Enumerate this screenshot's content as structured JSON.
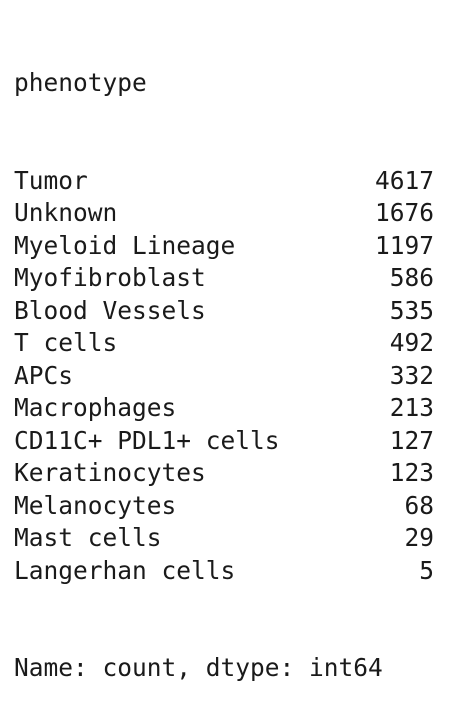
{
  "series": {
    "index_name": "phenotype",
    "rows": [
      {
        "label": "Tumor",
        "value": "4617"
      },
      {
        "label": "Unknown",
        "value": "1676"
      },
      {
        "label": "Myeloid Lineage",
        "value": "1197"
      },
      {
        "label": "Myofibroblast",
        "value": "586"
      },
      {
        "label": "Blood Vessels",
        "value": "535"
      },
      {
        "label": "T cells",
        "value": "492"
      },
      {
        "label": "APCs",
        "value": "332"
      },
      {
        "label": "Macrophages",
        "value": "213"
      },
      {
        "label": "CD11C+ PDL1+ cells",
        "value": "127"
      },
      {
        "label": "Keratinocytes",
        "value": "123"
      },
      {
        "label": "Melanocytes",
        "value": "68"
      },
      {
        "label": "Mast cells",
        "value": "29"
      },
      {
        "label": "Langerhan cells",
        "value": "5"
      }
    ],
    "footer": "Name: count, dtype: int64"
  }
}
